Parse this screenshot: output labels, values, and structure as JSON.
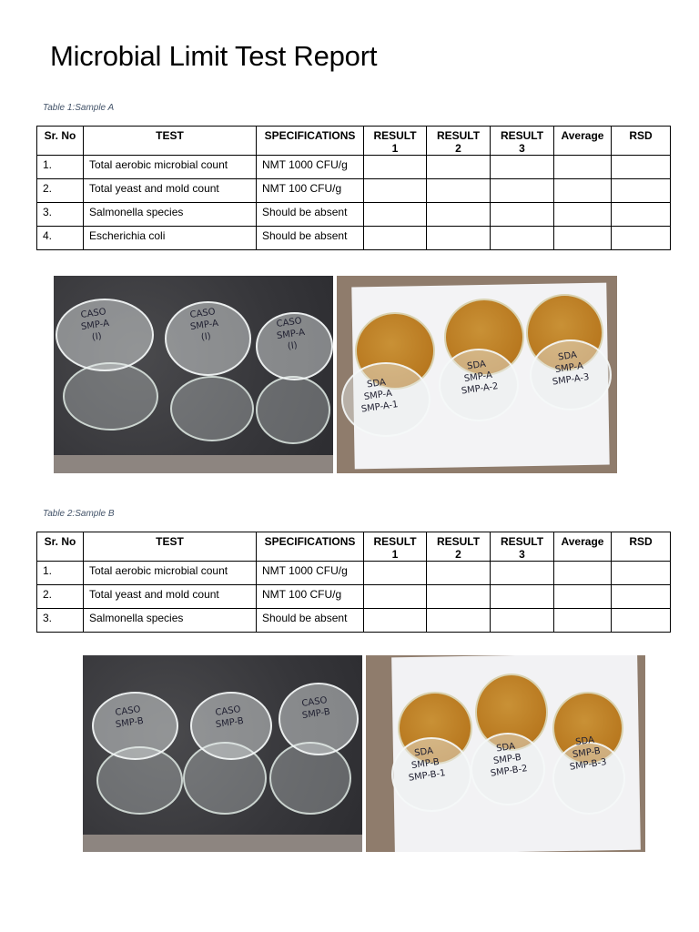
{
  "title": "Microbial Limit Test Report",
  "tables": [
    {
      "caption": "Table 1:Sample A",
      "headers": [
        "Sr. No",
        "TEST",
        "SPECIFICATIONS",
        "RESULT 1",
        "RESULT 2",
        "RESULT 3",
        "Average",
        "RSD"
      ],
      "rows": [
        [
          "1.",
          "Total aerobic microbial count",
          "NMT 1000 CFU/g",
          "",
          "",
          "",
          "",
          ""
        ],
        [
          "2.",
          "Total yeast and mold count",
          "NMT 100 CFU/g",
          "",
          "",
          "",
          "",
          ""
        ],
        [
          "3.",
          "Salmonella species",
          "Should be absent",
          "",
          "",
          "",
          "",
          ""
        ],
        [
          "4.",
          "Escherichia coli",
          "Should be absent",
          "",
          "",
          "",
          "",
          ""
        ]
      ]
    },
    {
      "caption": "Table 2:Sample B",
      "headers": [
        "Sr. No",
        "TEST",
        "SPECIFICATIONS",
        "RESULT 1",
        "RESULT 2",
        "RESULT 3",
        "Average",
        "RSD"
      ],
      "rows": [
        [
          "1.",
          "Total aerobic microbial count",
          "NMT 1000 CFU/g",
          "",
          "",
          "",
          "",
          ""
        ],
        [
          "2.",
          "Total yeast and mold count",
          "NMT 100 CFU/g",
          "",
          "",
          "",
          "",
          ""
        ],
        [
          "3.",
          "Salmonella species",
          "Should be absent",
          "",
          "",
          "",
          "",
          ""
        ]
      ]
    }
  ],
  "photos": {
    "a_caso_labels": [
      "CASO\nSMP-A\n(I)",
      "CASO\nSMP-A\n(I)",
      "CASO\nSMP-A\n(I)"
    ],
    "a_sda_labels": [
      "SDA\nSMP-A\nSMP-A-1",
      "SDA\nSMP-A\nSMP-A-2",
      "SDA\nSMP-A\nSMP-A-3"
    ],
    "b_caso_labels": [
      "CASO\nSMP-B",
      "CASO\nSMP-B",
      "CASO\nSMP-B"
    ],
    "b_sda_labels": [
      "SDA\nSMP-B\nSMP-B-1",
      "SDA\nSMP-B\nSMP-B-2",
      "SDA\nSMP-B\nSMP-B-3"
    ]
  }
}
